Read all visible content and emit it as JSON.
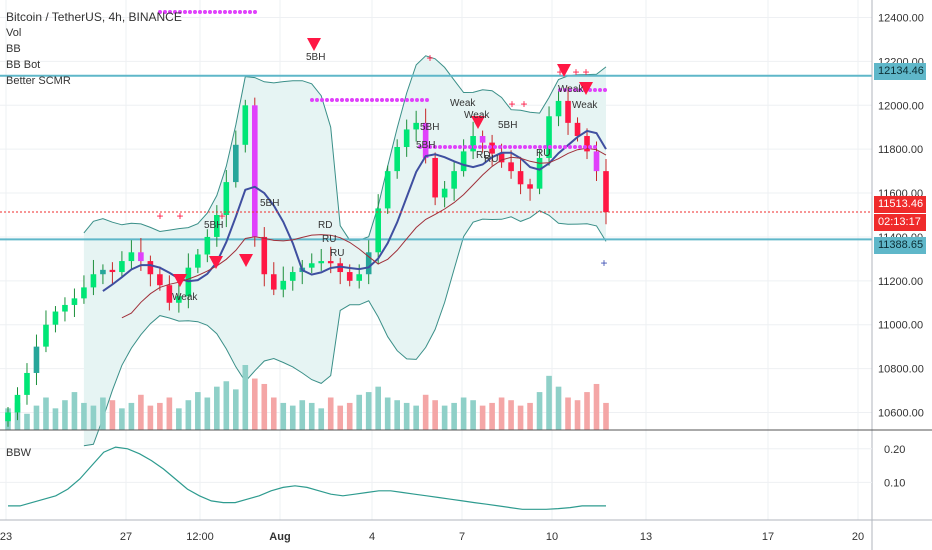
{
  "title": "Bitcoin / TetherUS, 4h, BINANCE",
  "indicators": [
    "Vol",
    "BB",
    "BB Bot",
    "Better SCMR"
  ],
  "sub_pane_label": "BBW",
  "price_tags": {
    "upper_level": "12134.46",
    "last_price": "11513.46",
    "countdown": "02:13:17",
    "lower_level": "11388.65"
  },
  "colors": {
    "up": "#26a69a",
    "green": "#00e676",
    "down": "#ef5350",
    "red_bar": "#ff1744",
    "orange": "#e07a00",
    "magenta": "#e040fb",
    "level_line": "#5fb7c9",
    "bb_fill": "#e6f4f3",
    "bb_line": "#3a8f88",
    "ma_blue": "#3f4fa0",
    "ma_red": "#a0303a",
    "bbw_line": "#2e9b8f"
  },
  "chart_data": {
    "type": "candlestick",
    "title": "Bitcoin / TetherUS, 4h, BINANCE",
    "y_ticks": [
      12400,
      12200,
      12000,
      11800,
      11600,
      11400,
      11200,
      11000,
      10800,
      10600
    ],
    "y_tick_labels": [
      "12400.00",
      "12200.00",
      "12000.00",
      "11800.00",
      "11600.00",
      "11400.00",
      "11200.00",
      "11000.00",
      "10800.00",
      "10600.00"
    ],
    "ylim": [
      10520,
      12480
    ],
    "x_tick_labels": [
      "23",
      "27",
      "12:00",
      "Aug",
      "4",
      "7",
      "10",
      "13",
      "17",
      "20"
    ],
    "horizontal_levels": [
      12134.46,
      11388.65
    ],
    "last_price": 11513.46,
    "close_series": [
      10600,
      10680,
      10780,
      10900,
      11000,
      11060,
      11090,
      11120,
      11170,
      11230,
      11250,
      11240,
      11290,
      11330,
      11290,
      11230,
      11180,
      11100,
      11130,
      11260,
      11320,
      11400,
      11500,
      11650,
      11820,
      12000,
      11400,
      11230,
      11160,
      11200,
      11240,
      11260,
      11280,
      11290,
      11280,
      11240,
      11200,
      11230,
      11330,
      11530,
      11700,
      11810,
      11890,
      11920,
      11760,
      11580,
      11620,
      11700,
      11790,
      11860,
      11830,
      11780,
      11740,
      11700,
      11640,
      11620,
      11760,
      11950,
      12020,
      11920,
      11860,
      11790,
      11700,
      11513
    ],
    "volume_series": [
      40,
      50,
      30,
      45,
      60,
      40,
      55,
      70,
      50,
      45,
      60,
      55,
      40,
      50,
      65,
      45,
      50,
      60,
      40,
      55,
      70,
      60,
      80,
      90,
      75,
      120,
      95,
      85,
      60,
      50,
      45,
      55,
      50,
      40,
      60,
      45,
      50,
      65,
      70,
      80,
      60,
      55,
      50,
      45,
      65,
      55,
      45,
      50,
      60,
      55,
      45,
      50,
      60,
      55,
      45,
      50,
      70,
      100,
      80,
      60,
      55,
      70,
      85,
      50
    ],
    "annotations": [
      "5BH",
      "5BH",
      "5BH",
      "5BH",
      "5BH",
      "5BH",
      "RD",
      "RU",
      "RU",
      "RD",
      "RU",
      "RU",
      "Weak",
      "Weak",
      "Weak",
      "Weak",
      "Weak"
    ],
    "sub_pane": {
      "label": "BBW",
      "y_ticks": [
        0.2,
        0.1
      ],
      "y_tick_labels": [
        "0.20",
        "0.10"
      ],
      "ylim": [
        0.0,
        0.25
      ],
      "values": [
        0.03,
        0.03,
        0.04,
        0.05,
        0.06,
        0.08,
        0.11,
        0.15,
        0.19,
        0.205,
        0.2,
        0.185,
        0.165,
        0.14,
        0.11,
        0.08,
        0.06,
        0.045,
        0.04,
        0.04,
        0.05,
        0.06,
        0.075,
        0.085,
        0.09,
        0.085,
        0.075,
        0.065,
        0.06,
        0.065,
        0.07,
        0.075,
        0.075,
        0.07,
        0.065,
        0.06,
        0.055,
        0.05,
        0.045,
        0.04,
        0.035,
        0.03,
        0.025,
        0.02,
        0.02,
        0.02,
        0.022,
        0.025,
        0.03,
        0.03,
        0.03
      ]
    }
  }
}
